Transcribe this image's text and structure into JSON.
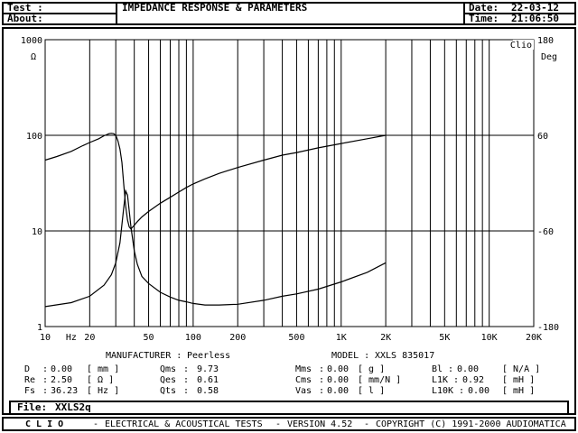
{
  "header": {
    "test_label": "Test :",
    "about_label": "About:",
    "title": "IMPEDANCE RESPONSE & PARAMETERS",
    "date_label": "Date:",
    "date_value": "22-03-12",
    "time_label": "Time:",
    "time_value": "21:06:50"
  },
  "chart_data": {
    "type": "line",
    "x_scale": "log",
    "xlim": [
      10,
      20000
    ],
    "x_ticks": [
      "10",
      "Hz",
      "20",
      "50",
      "100",
      "200",
      "500",
      "1K",
      "2K",
      "5K",
      "10K",
      "20K"
    ],
    "y_left": {
      "unit": "Ω",
      "scale": "log",
      "lim": [
        1,
        1000
      ],
      "ticks": [
        "1000",
        "100",
        "10",
        "1"
      ]
    },
    "y_right": {
      "unit": "Deg",
      "scale": "linear",
      "lim": [
        -180,
        180
      ],
      "ticks": [
        "180",
        "60",
        "-60",
        "-180"
      ]
    },
    "grid": true,
    "tag": "Clio",
    "series": [
      {
        "role": "magnitude",
        "x": [
          10,
          12,
          15,
          18,
          20,
          23,
          25,
          27,
          28,
          29,
          30,
          31,
          32,
          33,
          34,
          35,
          36,
          37,
          38,
          40,
          42,
          45,
          50,
          60,
          70,
          80,
          90,
          100,
          120,
          150,
          200,
          300,
          400,
          500,
          700,
          1000,
          1500,
          2000
        ],
        "y": [
          55,
          60,
          68,
          78,
          84,
          92,
          99,
          104,
          105,
          104,
          100,
          88,
          72,
          52,
          30,
          18,
          13,
          11,
          10.5,
          11.5,
          12.5,
          14,
          16,
          19.5,
          22.5,
          25.5,
          28.5,
          31,
          35,
          40,
          46,
          55,
          62,
          66,
          74,
          82,
          92,
          100
        ]
      },
      {
        "role": "phase",
        "x": [
          10,
          15,
          20,
          25,
          28,
          30,
          32,
          34,
          35,
          36,
          37,
          38,
          40,
          42,
          45,
          50,
          60,
          70,
          80,
          90,
          100,
          120,
          150,
          200,
          300,
          400,
          500,
          700,
          1000,
          1500,
          2000
        ],
        "y": [
          -155,
          -150,
          -142,
          -128,
          -115,
          -100,
          -75,
          -30,
          -10,
          -15,
          -35,
          -55,
          -85,
          -102,
          -117,
          -126,
          -137,
          -143,
          -147,
          -149,
          -151,
          -153,
          -153,
          -152,
          -147,
          -142,
          -139,
          -133,
          -124,
          -112,
          -100
        ]
      }
    ]
  },
  "parameters": {
    "manufacturer_label": "MANUFACTURER :",
    "manufacturer_value": "Peerless",
    "model_label": "MODEL :",
    "model_value": "XXLS 835017",
    "col1": [
      {
        "name": "D",
        "value": "0.00",
        "unit": "[ mm ]"
      },
      {
        "name": "Re",
        "value": "2.50",
        "unit": "[ Ω ]"
      },
      {
        "name": "Fs",
        "value": "36.23",
        "unit": "[ Hz ]"
      }
    ],
    "col2": [
      {
        "name": "Qms",
        "value": "9.73"
      },
      {
        "name": "Qes",
        "value": "0.61"
      },
      {
        "name": "Qts",
        "value": "0.58"
      }
    ],
    "col3": [
      {
        "name": "Mms",
        "value": "0.00",
        "unit": "[ g ]"
      },
      {
        "name": "Cms",
        "value": "0.00",
        "unit": "[ mm/N ]"
      },
      {
        "name": "Vas",
        "value": "0.00",
        "unit": "[ l ]"
      }
    ],
    "col4": [
      {
        "name": "Bl",
        "value": "0.00",
        "unit": "[ N/A ]"
      },
      {
        "name": "L1K",
        "value": "0.92",
        "unit": "[ mH ]"
      },
      {
        "name": "L10K",
        "value": "0.00",
        "unit": "[ mH ]"
      }
    ]
  },
  "file": {
    "label": "File:",
    "value": "XXLS2q"
  },
  "footer": {
    "brand": "C L I O",
    "desc": "ELECTRICAL & ACOUSTICAL TESTS",
    "version": "VERSION 4.52",
    "copyright": "COPYRIGHT (C) 1991-2000 AUDIOMATICA"
  }
}
